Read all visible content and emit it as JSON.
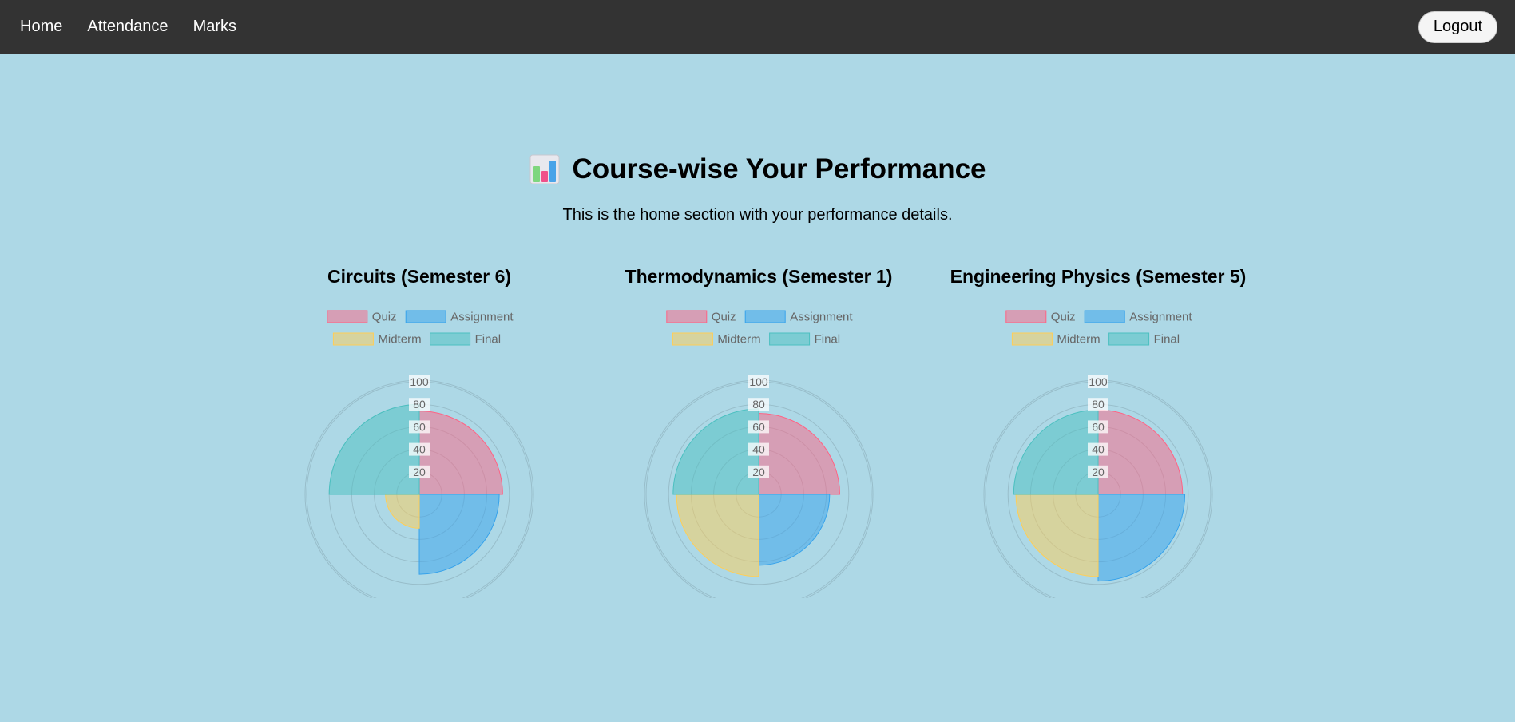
{
  "nav": {
    "links": [
      {
        "label": "Home"
      },
      {
        "label": "Attendance"
      },
      {
        "label": "Marks"
      }
    ],
    "logout_label": "Logout"
  },
  "page": {
    "title": "Course-wise Your Performance",
    "title_icon": "bar-chart-icon",
    "subtitle": "This is the home section with your performance details."
  },
  "colors": {
    "background": "#add8e6",
    "navbar": "#333333",
    "quiz": "#ff6384",
    "assignment": "#36a2eb",
    "midterm": "#ffce56",
    "final": "#4bc0c0"
  },
  "chart_data": [
    {
      "type": "polarArea",
      "title": "Circuits (Semester 6)",
      "categories": [
        "Quiz",
        "Assignment",
        "Midterm",
        "Final"
      ],
      "values": [
        74,
        71,
        30,
        80
      ],
      "ticks": [
        "20",
        "40",
        "60",
        "80",
        "100"
      ],
      "rlim": [
        0,
        100
      ],
      "legend": "top"
    },
    {
      "type": "polarArea",
      "title": "Thermodynamics (Semester 1)",
      "categories": [
        "Quiz",
        "Assignment",
        "Midterm",
        "Final"
      ],
      "values": [
        72,
        63,
        73,
        76
      ],
      "ticks": [
        "20",
        "40",
        "60",
        "80",
        "100"
      ],
      "rlim": [
        0,
        100
      ],
      "legend": "top"
    },
    {
      "type": "polarArea",
      "title": "Engineering Physics (Semester 5)",
      "categories": [
        "Quiz",
        "Assignment",
        "Midterm",
        "Final"
      ],
      "values": [
        75,
        77,
        73,
        75
      ],
      "ticks": [
        "20",
        "40",
        "60",
        "80",
        "100"
      ],
      "rlim": [
        0,
        100
      ],
      "legend": "top"
    }
  ]
}
